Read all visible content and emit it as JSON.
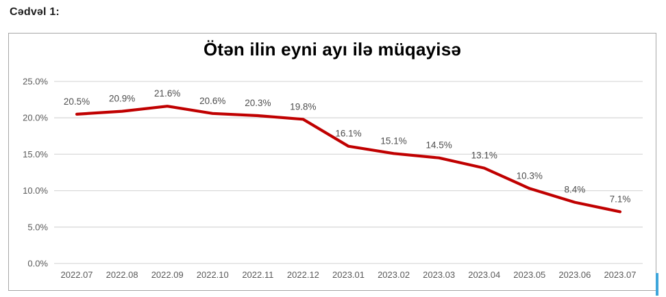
{
  "page": {
    "caption": "Cədvəl 1:"
  },
  "chart_data": {
    "type": "line",
    "title": "Ötən ilin eyni ayı ilə müqayisə",
    "categories": [
      "2022.07",
      "2022.08",
      "2022.09",
      "2022.10",
      "2022.11",
      "2022.12",
      "2023.01",
      "2023.02",
      "2023.03",
      "2023.04",
      "2023.05",
      "2023.06",
      "2023.07"
    ],
    "series": [
      {
        "name": "Ötən ilin eyni ayı ilə müqayisə",
        "values": [
          20.5,
          20.9,
          21.6,
          20.6,
          20.3,
          19.8,
          16.1,
          15.1,
          14.5,
          13.1,
          10.3,
          8.4,
          7.1
        ],
        "data_labels": [
          "20.5%",
          "20.9%",
          "21.6%",
          "20.6%",
          "20.3%",
          "19.8%",
          "16.1%",
          "15.1%",
          "14.5%",
          "13.1%",
          "10.3%",
          "8.4%",
          "7.1%"
        ]
      }
    ],
    "xlabel": "",
    "ylabel": "",
    "ylim": [
      0,
      25
    ],
    "yticks": [
      0,
      5,
      10,
      15,
      20,
      25
    ],
    "ytick_labels": [
      "0.0%",
      "5.0%",
      "10.0%",
      "15.0%",
      "20.0%",
      "25.0%"
    ],
    "grid": true,
    "legend": false,
    "colors": {
      "line": "#C00000",
      "grid": "#D9D9D9",
      "axis_label": "#595959",
      "data_label": "#4d4d4d",
      "title": "#000000"
    }
  },
  "artifacts": {
    "cursor_color": "#3EA6DB"
  }
}
